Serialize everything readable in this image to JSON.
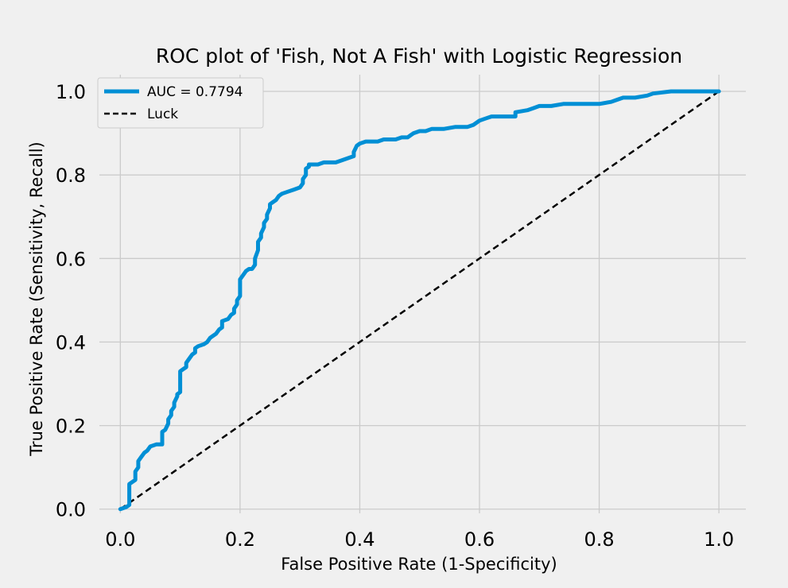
{
  "chart_data": {
    "type": "line",
    "title": "ROC plot of 'Fish, Not A Fish' with Logistic Regression",
    "xlabel": "False Positive Rate (1-Specificity)",
    "ylabel": "True Positive Rate (Sensitivity, Recall)",
    "xlim": [
      -0.035,
      1.045
    ],
    "ylim": [
      -0.01,
      1.04
    ],
    "xticks": [
      "0.0",
      "0.2",
      "0.4",
      "0.6",
      "0.8",
      "1.0"
    ],
    "yticks": [
      "0.0",
      "0.2",
      "0.4",
      "0.6",
      "0.8",
      "1.0"
    ],
    "grid": true,
    "legend_position": "top-left",
    "series": [
      {
        "name": "AUC = 0.7794",
        "color": "#008fd5",
        "style": "solid",
        "points": [
          [
            0.0,
            0.0
          ],
          [
            0.01,
            0.005
          ],
          [
            0.015,
            0.01
          ],
          [
            0.015,
            0.03
          ],
          [
            0.015,
            0.06
          ],
          [
            0.02,
            0.065
          ],
          [
            0.025,
            0.07
          ],
          [
            0.025,
            0.09
          ],
          [
            0.03,
            0.1
          ],
          [
            0.03,
            0.115
          ],
          [
            0.035,
            0.125
          ],
          [
            0.04,
            0.135
          ],
          [
            0.045,
            0.14
          ],
          [
            0.05,
            0.15
          ],
          [
            0.06,
            0.155
          ],
          [
            0.07,
            0.155
          ],
          [
            0.07,
            0.17
          ],
          [
            0.07,
            0.185
          ],
          [
            0.075,
            0.19
          ],
          [
            0.08,
            0.205
          ],
          [
            0.08,
            0.215
          ],
          [
            0.085,
            0.225
          ],
          [
            0.085,
            0.235
          ],
          [
            0.09,
            0.245
          ],
          [
            0.09,
            0.255
          ],
          [
            0.095,
            0.27
          ],
          [
            0.095,
            0.275
          ],
          [
            0.1,
            0.28
          ],
          [
            0.1,
            0.29
          ],
          [
            0.1,
            0.31
          ],
          [
            0.1,
            0.33
          ],
          [
            0.105,
            0.335
          ],
          [
            0.11,
            0.34
          ],
          [
            0.11,
            0.35
          ],
          [
            0.115,
            0.36
          ],
          [
            0.12,
            0.37
          ],
          [
            0.125,
            0.375
          ],
          [
            0.125,
            0.385
          ],
          [
            0.13,
            0.39
          ],
          [
            0.14,
            0.395
          ],
          [
            0.145,
            0.4
          ],
          [
            0.15,
            0.41
          ],
          [
            0.155,
            0.415
          ],
          [
            0.16,
            0.42
          ],
          [
            0.165,
            0.43
          ],
          [
            0.17,
            0.435
          ],
          [
            0.17,
            0.45
          ],
          [
            0.18,
            0.455
          ],
          [
            0.185,
            0.465
          ],
          [
            0.19,
            0.47
          ],
          [
            0.19,
            0.48
          ],
          [
            0.195,
            0.49
          ],
          [
            0.195,
            0.5
          ],
          [
            0.2,
            0.51
          ],
          [
            0.2,
            0.53
          ],
          [
            0.2,
            0.55
          ],
          [
            0.205,
            0.56
          ],
          [
            0.21,
            0.57
          ],
          [
            0.215,
            0.575
          ],
          [
            0.22,
            0.575
          ],
          [
            0.225,
            0.585
          ],
          [
            0.225,
            0.6
          ],
          [
            0.23,
            0.62
          ],
          [
            0.23,
            0.64
          ],
          [
            0.235,
            0.65
          ],
          [
            0.235,
            0.66
          ],
          [
            0.24,
            0.675
          ],
          [
            0.24,
            0.685
          ],
          [
            0.245,
            0.695
          ],
          [
            0.245,
            0.705
          ],
          [
            0.25,
            0.72
          ],
          [
            0.25,
            0.73
          ],
          [
            0.255,
            0.735
          ],
          [
            0.26,
            0.74
          ],
          [
            0.265,
            0.75
          ],
          [
            0.27,
            0.755
          ],
          [
            0.28,
            0.76
          ],
          [
            0.29,
            0.765
          ],
          [
            0.3,
            0.77
          ],
          [
            0.305,
            0.78
          ],
          [
            0.305,
            0.79
          ],
          [
            0.31,
            0.8
          ],
          [
            0.31,
            0.815
          ],
          [
            0.315,
            0.82
          ],
          [
            0.315,
            0.825
          ],
          [
            0.33,
            0.825
          ],
          [
            0.34,
            0.83
          ],
          [
            0.36,
            0.83
          ],
          [
            0.37,
            0.835
          ],
          [
            0.38,
            0.84
          ],
          [
            0.39,
            0.845
          ],
          [
            0.39,
            0.855
          ],
          [
            0.395,
            0.87
          ],
          [
            0.4,
            0.875
          ],
          [
            0.41,
            0.88
          ],
          [
            0.43,
            0.88
          ],
          [
            0.44,
            0.885
          ],
          [
            0.46,
            0.885
          ],
          [
            0.47,
            0.89
          ],
          [
            0.48,
            0.89
          ],
          [
            0.485,
            0.895
          ],
          [
            0.49,
            0.9
          ],
          [
            0.5,
            0.905
          ],
          [
            0.51,
            0.905
          ],
          [
            0.52,
            0.91
          ],
          [
            0.54,
            0.91
          ],
          [
            0.56,
            0.915
          ],
          [
            0.58,
            0.915
          ],
          [
            0.59,
            0.92
          ],
          [
            0.6,
            0.93
          ],
          [
            0.61,
            0.935
          ],
          [
            0.62,
            0.94
          ],
          [
            0.66,
            0.94
          ],
          [
            0.66,
            0.95
          ],
          [
            0.68,
            0.955
          ],
          [
            0.69,
            0.96
          ],
          [
            0.7,
            0.965
          ],
          [
            0.72,
            0.965
          ],
          [
            0.74,
            0.97
          ],
          [
            0.8,
            0.97
          ],
          [
            0.82,
            0.975
          ],
          [
            0.83,
            0.98
          ],
          [
            0.84,
            0.985
          ],
          [
            0.86,
            0.985
          ],
          [
            0.88,
            0.99
          ],
          [
            0.89,
            0.995
          ],
          [
            0.92,
            1.0
          ],
          [
            1.0,
            1.0
          ]
        ]
      },
      {
        "name": "Luck",
        "color": "#000000",
        "style": "dashed",
        "points": [
          [
            0.0,
            0.0
          ],
          [
            1.0,
            1.0
          ]
        ]
      }
    ]
  }
}
